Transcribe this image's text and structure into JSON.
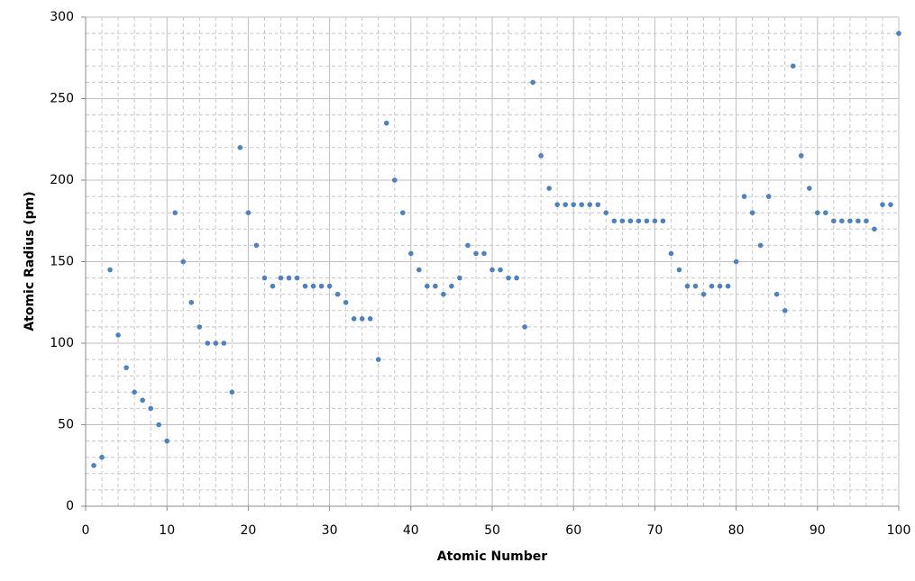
{
  "chart_data": {
    "type": "scatter",
    "x_label": "Atomic Number",
    "y_label": "Atomic Radius (pm)",
    "x": [
      1,
      2,
      3,
      4,
      5,
      6,
      7,
      8,
      9,
      10,
      11,
      12,
      13,
      14,
      15,
      16,
      17,
      18,
      19,
      20,
      21,
      22,
      23,
      24,
      25,
      26,
      27,
      28,
      29,
      30,
      31,
      32,
      33,
      34,
      35,
      36,
      37,
      38,
      39,
      40,
      41,
      42,
      43,
      44,
      45,
      46,
      47,
      48,
      49,
      50,
      51,
      52,
      53,
      54,
      55,
      56,
      57,
      58,
      59,
      60,
      61,
      62,
      63,
      64,
      65,
      66,
      67,
      68,
      69,
      70,
      71,
      72,
      73,
      74,
      75,
      76,
      77,
      78,
      79,
      80,
      81,
      82,
      83,
      84,
      85,
      86,
      87,
      88,
      89,
      90,
      91,
      92,
      93,
      94,
      95,
      96,
      97,
      98,
      99,
      100
    ],
    "values": [
      25,
      30,
      145,
      105,
      85,
      70,
      65,
      60,
      50,
      40,
      180,
      150,
      125,
      110,
      100,
      100,
      100,
      70,
      220,
      180,
      160,
      140,
      135,
      140,
      140,
      140,
      135,
      135,
      135,
      135,
      130,
      125,
      115,
      115,
      115,
      90,
      235,
      200,
      180,
      155,
      145,
      135,
      135,
      130,
      135,
      140,
      160,
      155,
      155,
      145,
      145,
      140,
      140,
      110,
      260,
      215,
      195,
      185,
      185,
      185,
      185,
      185,
      185,
      180,
      175,
      175,
      175,
      175,
      175,
      175,
      175,
      155,
      145,
      135,
      135,
      130,
      135,
      135,
      135,
      150,
      190,
      180,
      160,
      190,
      130,
      120,
      270,
      215,
      195,
      180,
      180,
      175,
      175,
      175,
      175,
      175,
      170,
      185,
      185,
      290
    ],
    "color": "#4f81bd",
    "xlim": [
      0,
      100
    ],
    "xticks": [
      0,
      10,
      20,
      30,
      40,
      50,
      60,
      70,
      80,
      90,
      100
    ],
    "ylim": [
      0,
      300
    ],
    "yticks": [
      0,
      50,
      100,
      150,
      200,
      250,
      300
    ],
    "grid": true
  }
}
